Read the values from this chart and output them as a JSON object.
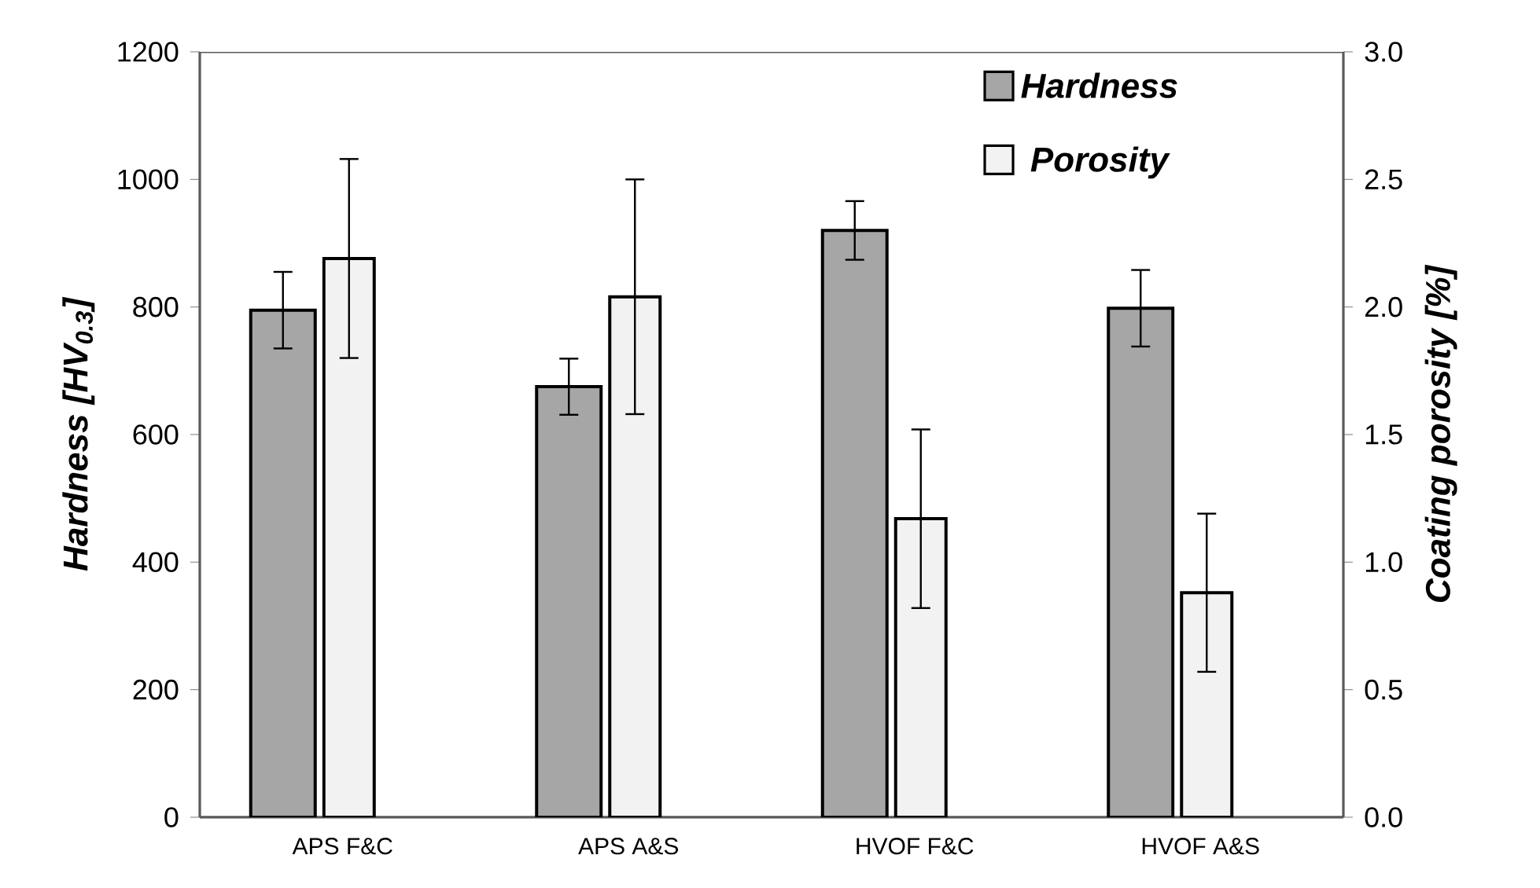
{
  "chart_data": {
    "type": "bar",
    "categories": [
      "APS F&C",
      "APS A&S",
      "HVOF F&C",
      "HVOF A&S"
    ],
    "ylabel": "Hardness [HV$_{0.3}$]",
    "y2label": "Coating porosity [%]",
    "series": [
      {
        "name": "Hardness",
        "color": "#a6a6a6",
        "values": [
          795,
          675,
          920,
          798
        ],
        "errors": [
          60,
          44,
          46,
          60
        ]
      },
      {
        "name": "Porosity",
        "color": "#f2f2f2",
        "axis": "y2",
        "values": [
          2.19,
          2.04,
          1.17,
          0.88
        ],
        "errors": [
          0.39,
          0.46,
          0.35,
          0.31
        ]
      }
    ],
    "ylim": [
      0,
      1200
    ],
    "yticks": [
      0,
      200,
      400,
      600,
      800,
      1000,
      1200
    ],
    "y2lim": [
      0,
      3
    ],
    "y2ticks": [
      {
        "value": 0,
        "label": "0.0"
      },
      {
        "value": 0.5,
        "label": "0.5"
      },
      {
        "value": 1,
        "label": "1.0"
      },
      {
        "value": 1.5,
        "label": "1.5"
      },
      {
        "value": 2,
        "label": "2.0"
      },
      {
        "value": 2.5,
        "label": "2.5"
      },
      {
        "value": 3,
        "label": "3.0"
      }
    ],
    "legend": "top right",
    "grid": false
  }
}
